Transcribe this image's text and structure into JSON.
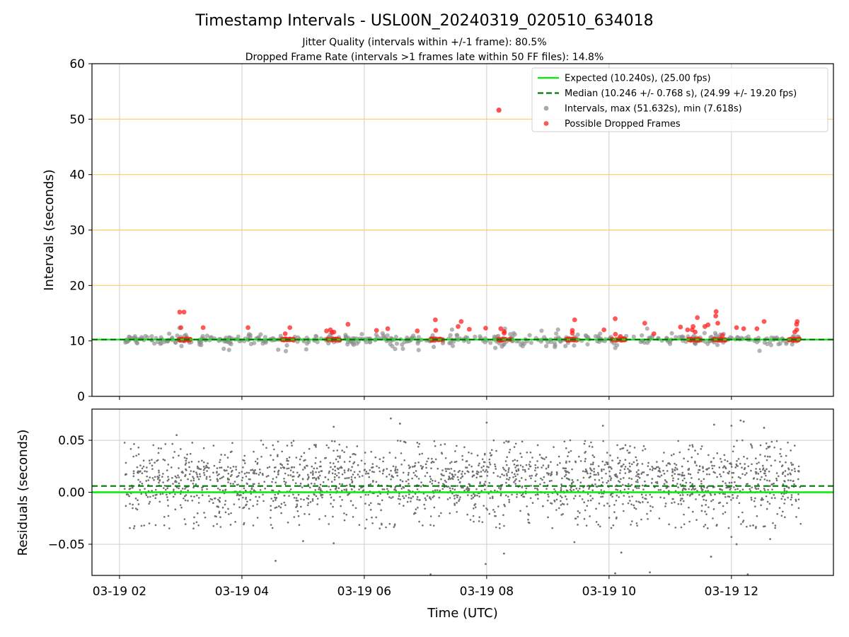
{
  "title": "Timestamp Intervals - USL00N_20240319_020510_634018",
  "subtitle_1": "Jitter Quality (intervals within +/-1 frame): 80.5%",
  "subtitle_2": "Dropped Frame Rate (intervals >1 frames late within 50 FF files): 14.8%",
  "colors": {
    "expected": "#00ee00",
    "median": "#007a00",
    "intervals": "#8c8c8c",
    "dropped": "#ff2020",
    "threshold_lines": "#ffcc66",
    "grid": "#cccccc",
    "residuals": "#6e6e6e"
  },
  "chart_data": [
    {
      "type": "scatter",
      "panel": "intervals",
      "ylabel": "Intervals (seconds)",
      "xlim": [
        "2024-03-19T01:33",
        "2024-03-19T13:40"
      ],
      "ylim": [
        0,
        60
      ],
      "yticks": [
        0,
        10,
        20,
        30,
        40,
        50,
        60
      ],
      "horizontal_lines": [
        20,
        30,
        40,
        50
      ],
      "grid": true,
      "legend_position": "upper right",
      "legend": [
        {
          "label": "Expected (10.240s), (25.00 fps)",
          "style": "solid-line",
          "color_key": "expected"
        },
        {
          "label": "Median (10.246 +/- 0.768 s), (24.99 +/- 19.20 fps)",
          "style": "dashed-line",
          "color_key": "median"
        },
        {
          "label": "Intervals, max (51.632s), min (7.618s)",
          "style": "marker",
          "color_key": "intervals"
        },
        {
          "label": "Possible Dropped Frames",
          "style": "marker",
          "color_key": "dropped"
        }
      ],
      "expected_value": 10.24,
      "median_value": 10.246,
      "max_interval": 51.632,
      "min_interval": 7.618,
      "series_time_range": [
        "2024-03-19T02:05",
        "2024-03-19T13:08"
      ],
      "dropped_clusters": [
        {
          "t": "03:03",
          "high": [
            15.2,
            12.4
          ]
        },
        {
          "t": "04:45",
          "high": [
            12.4,
            11.3
          ]
        },
        {
          "t": "05:30",
          "high": [
            12.0,
            11.6,
            11.5
          ]
        },
        {
          "t": "07:12",
          "high": [
            13.8,
            11.9
          ]
        },
        {
          "t": "08:17",
          "high": [
            12.2,
            11.7,
            11.4
          ]
        },
        {
          "t": "09:24",
          "high": [
            13.8,
            11.9,
            11.4
          ]
        },
        {
          "t": "10:09",
          "high": [
            14.0,
            11.2,
            10.8
          ]
        },
        {
          "t": "11:23",
          "high": [
            14.2,
            12.6,
            12.0,
            11.6
          ]
        },
        {
          "t": "11:48",
          "high": [
            15.3,
            14.5,
            13.2,
            11.0
          ]
        },
        {
          "t": "13:02",
          "high": [
            13.5,
            13.0,
            12.0,
            11.6
          ]
        }
      ],
      "dropped_scattered": [
        {
          "t": "02:59",
          "y": 15.2
        },
        {
          "t": "03:22",
          "y": 12.4
        },
        {
          "t": "04:06",
          "y": 12.4
        },
        {
          "t": "05:23",
          "y": 11.8
        },
        {
          "t": "05:44",
          "y": 13.0
        },
        {
          "t": "06:12",
          "y": 11.9
        },
        {
          "t": "06:23",
          "y": 12.2
        },
        {
          "t": "06:52",
          "y": 11.8
        },
        {
          "t": "07:32",
          "y": 12.6
        },
        {
          "t": "07:35",
          "y": 13.5
        },
        {
          "t": "07:43",
          "y": 12.1
        },
        {
          "t": "07:59",
          "y": 12.3
        },
        {
          "t": "09:55",
          "y": 12.0
        },
        {
          "t": "10:35",
          "y": 13.2
        },
        {
          "t": "10:44",
          "y": 11.3
        },
        {
          "t": "11:10",
          "y": 12.5
        },
        {
          "t": "11:17",
          "y": 12.0
        },
        {
          "t": "11:34",
          "y": 12.6
        },
        {
          "t": "11:37",
          "y": 12.9
        },
        {
          "t": "12:05",
          "y": 12.4
        },
        {
          "t": "12:12",
          "y": 12.2
        },
        {
          "t": "12:25",
          "y": 12.2
        },
        {
          "t": "12:32",
          "y": 13.5
        }
      ],
      "outliers": [
        {
          "t": "08:12",
          "y": 51.632
        }
      ]
    },
    {
      "type": "scatter",
      "panel": "residuals",
      "xlabel": "Time (UTC)",
      "ylabel": "Residuals (seconds)",
      "xlim": [
        "2024-03-19T01:33",
        "2024-03-19T13:40"
      ],
      "ylim": [
        -0.08,
        0.08
      ],
      "yticks": [
        -0.05,
        0.0,
        0.05
      ],
      "ytick_labels": [
        "−0.05",
        "0.00",
        "0.05"
      ],
      "xticks": [
        "2024-03-19T02:00",
        "2024-03-19T04:00",
        "2024-03-19T06:00",
        "2024-03-19T08:00",
        "2024-03-19T10:00",
        "2024-03-19T12:00"
      ],
      "xtick_labels": [
        "03-19 02",
        "03-19 04",
        "03-19 06",
        "03-19 08",
        "03-19 10",
        "03-19 12"
      ],
      "zero_line": 0.0,
      "median_offset": 0.006,
      "grid": true,
      "series_time_range": [
        "2024-03-19T02:05",
        "2024-03-19T13:08"
      ],
      "residual_spread": {
        "typical_low": -0.035,
        "typical_high": 0.05
      },
      "outliers": [
        {
          "t": "02:56",
          "y": 0.055
        },
        {
          "t": "05:30",
          "y": 0.063
        },
        {
          "t": "06:26",
          "y": 0.071
        },
        {
          "t": "06:35",
          "y": 0.066
        },
        {
          "t": "08:00",
          "y": 0.067
        },
        {
          "t": "09:54",
          "y": 0.064
        },
        {
          "t": "11:43",
          "y": 0.065
        },
        {
          "t": "12:00",
          "y": 0.064
        },
        {
          "t": "12:09",
          "y": 0.069
        },
        {
          "t": "12:12",
          "y": 0.068
        },
        {
          "t": "12:32",
          "y": 0.062
        },
        {
          "t": "04:33",
          "y": -0.066
        },
        {
          "t": "05:00",
          "y": -0.047
        },
        {
          "t": "05:30",
          "y": -0.049
        },
        {
          "t": "07:05",
          "y": -0.079
        },
        {
          "t": "07:59",
          "y": -0.069
        },
        {
          "t": "08:17",
          "y": -0.059
        },
        {
          "t": "09:26",
          "y": -0.048
        },
        {
          "t": "10:06",
          "y": -0.078
        },
        {
          "t": "10:12",
          "y": -0.058
        },
        {
          "t": "10:40",
          "y": -0.077
        },
        {
          "t": "11:40",
          "y": -0.062
        },
        {
          "t": "12:00",
          "y": -0.043
        },
        {
          "t": "12:05",
          "y": -0.05
        },
        {
          "t": "12:16",
          "y": -0.079
        },
        {
          "t": "12:38",
          "y": -0.045
        }
      ]
    }
  ]
}
